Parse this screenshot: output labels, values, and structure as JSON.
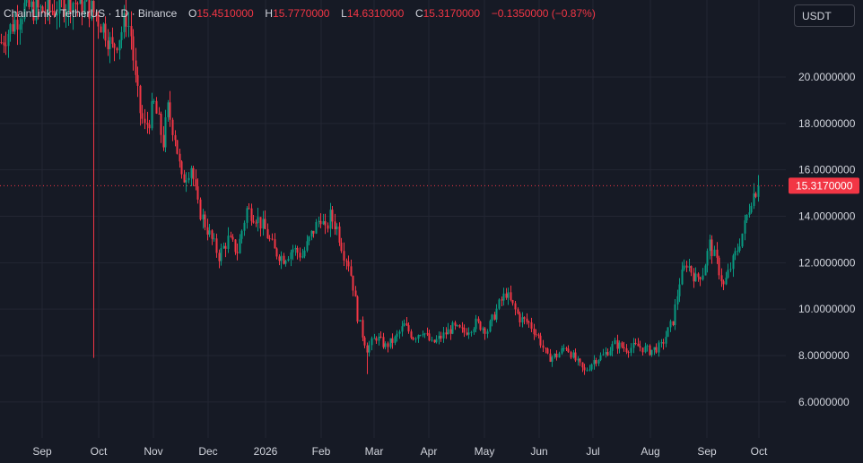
{
  "header": {
    "symbol": "ChainLink / TetherUS",
    "sep1": "·",
    "interval": "1D",
    "sep2": "·",
    "exchange": "Binance",
    "o_label": "O",
    "o_value": "15.4510000",
    "h_label": "H",
    "h_value": "15.7770000",
    "l_label": "L",
    "l_value": "14.6310000",
    "c_label": "C",
    "c_value": "15.3170000",
    "change": "−0.1350000 (−0.87%)"
  },
  "currency_button": "USDT",
  "colors": {
    "background": "#161a25",
    "grid": "#232633",
    "up": "#089981",
    "down": "#f23645",
    "text": "#d1d4dc"
  },
  "chart_data": {
    "type": "candlestick",
    "ylim": [
      5.3,
      23.4
    ],
    "yticks": [
      {
        "value": 6,
        "label": "6.0000000"
      },
      {
        "value": 8,
        "label": "8.0000000"
      },
      {
        "value": 10,
        "label": "10.0000000"
      },
      {
        "value": 12,
        "label": "12.0000000"
      },
      {
        "value": 14,
        "label": "14.0000000"
      },
      {
        "value": 16,
        "label": "16.0000000"
      },
      {
        "value": 18,
        "label": "18.0000000"
      },
      {
        "value": 20,
        "label": "20.0000000"
      }
    ],
    "xticks": [
      "Sep",
      "Oct",
      "Nov",
      "Dec",
      "2026",
      "Feb",
      "Mar",
      "Apr",
      "May",
      "Jun",
      "Jul",
      "Aug",
      "Sep",
      "Oct"
    ],
    "last_price": {
      "value": 15.317,
      "label": "15.3170000"
    },
    "price_path": [
      [
        0,
        21.5
      ],
      [
        10,
        23.0
      ],
      [
        20,
        22.8
      ],
      [
        30,
        23.3
      ],
      [
        38,
        23.0
      ],
      [
        40,
        22.8
      ],
      [
        45,
        22.0
      ],
      [
        48,
        21.2
      ],
      [
        52,
        22.0
      ],
      [
        54,
        22.6
      ],
      [
        56,
        21.8
      ],
      [
        58,
        19.8
      ],
      [
        60,
        18.5
      ],
      [
        62,
        17.8
      ],
      [
        64,
        18.2
      ],
      [
        66,
        18.8
      ],
      [
        70,
        17.2
      ],
      [
        72,
        18.6
      ],
      [
        75,
        17.5
      ],
      [
        78,
        15.5
      ],
      [
        82,
        16.2
      ],
      [
        85,
        14.4
      ],
      [
        90,
        13.2
      ],
      [
        94,
        12.3
      ],
      [
        98,
        13.0
      ],
      [
        102,
        12.5
      ],
      [
        106,
        14.3
      ],
      [
        110,
        14.0
      ],
      [
        114,
        13.4
      ],
      [
        118,
        12.5
      ],
      [
        122,
        12.2
      ],
      [
        126,
        12.6
      ],
      [
        130,
        12.3
      ],
      [
        134,
        13.2
      ],
      [
        138,
        14.0
      ],
      [
        140,
        13.3
      ],
      [
        142,
        14.0
      ],
      [
        145,
        13.5
      ],
      [
        148,
        12.4
      ],
      [
        150,
        12.0
      ],
      [
        152,
        11.0
      ],
      [
        154,
        9.7
      ],
      [
        156,
        8.9
      ],
      [
        158,
        8.3
      ],
      [
        162,
        8.8
      ],
      [
        166,
        8.4
      ],
      [
        170,
        8.7
      ],
      [
        174,
        9.3
      ],
      [
        178,
        8.8
      ],
      [
        182,
        9.1
      ],
      [
        186,
        8.5
      ],
      [
        190,
        8.8
      ],
      [
        195,
        9.2
      ],
      [
        200,
        9.0
      ],
      [
        205,
        9.4
      ],
      [
        210,
        9.1
      ],
      [
        215,
        10.2
      ],
      [
        218,
        10.7
      ],
      [
        220,
        10.3
      ],
      [
        224,
        9.6
      ],
      [
        228,
        9.4
      ],
      [
        232,
        8.8
      ],
      [
        236,
        7.9
      ],
      [
        240,
        8.0
      ],
      [
        244,
        8.4
      ],
      [
        248,
        7.8
      ],
      [
        252,
        7.3
      ],
      [
        256,
        7.8
      ],
      [
        260,
        8.0
      ],
      [
        265,
        8.5
      ],
      [
        270,
        8.3
      ],
      [
        275,
        8.4
      ],
      [
        280,
        8.2
      ],
      [
        285,
        8.4
      ],
      [
        290,
        9.5
      ],
      [
        293,
        11.2
      ],
      [
        296,
        12.0
      ],
      [
        300,
        11.3
      ],
      [
        303,
        11.6
      ],
      [
        306,
        12.8
      ],
      [
        309,
        12.0
      ],
      [
        312,
        11.0
      ],
      [
        315,
        11.8
      ],
      [
        318,
        12.6
      ],
      [
        321,
        13.6
      ],
      [
        324,
        14.8
      ],
      [
        327,
        15.3
      ]
    ]
  }
}
